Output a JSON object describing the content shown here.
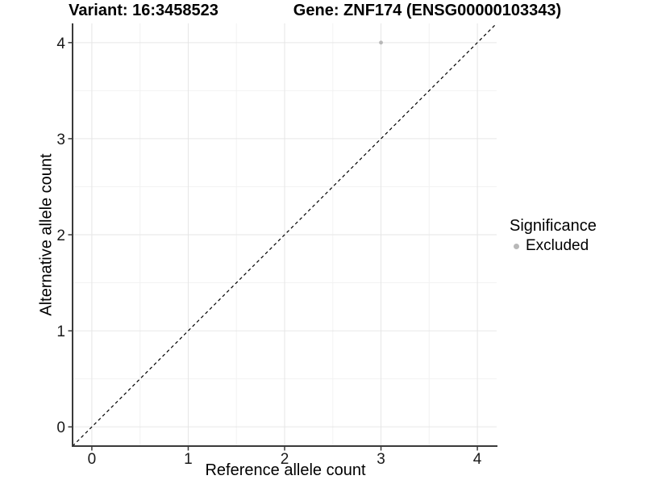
{
  "header": {
    "variant_title": "Variant: 16:3458523",
    "gene_title": "Gene: ZNF174 (ENSG00000103343)"
  },
  "colors": {
    "background": "#ffffff",
    "grid_major": "#e6e6e6",
    "grid_minor": "#f2f2f2",
    "axis_line": "#3a3a3a",
    "tick_text": "#1a1a1a",
    "point": "#b8b8b8",
    "identity_line": "#000000"
  },
  "chart_data": {
    "type": "scatter",
    "titles": [
      "Variant: 16:3458523",
      "Gene: ZNF174 (ENSG00000103343)"
    ],
    "xlabel": "Reference allele count",
    "ylabel": "Alternative allele count",
    "xlim": [
      -0.2,
      4.2
    ],
    "ylim": [
      -0.2,
      4.2
    ],
    "x_ticks": [
      0,
      1,
      2,
      3,
      4
    ],
    "y_ticks": [
      0,
      1,
      2,
      3,
      4
    ],
    "x_minor": [
      0.5,
      1.5,
      2.5,
      3.5
    ],
    "y_minor": [
      0.5,
      1.5,
      2.5,
      3.5
    ],
    "grid": "major+minor",
    "identity_line": {
      "style": "dashed",
      "slope": 1,
      "intercept": 0,
      "color": "#000000"
    },
    "legend": {
      "title": "Significance",
      "position": "right",
      "items": [
        {
          "label": "Excluded",
          "color": "#b8b8b8"
        }
      ]
    },
    "series": [
      {
        "name": "Excluded",
        "color": "#b8b8b8",
        "points": [
          [
            3,
            4
          ]
        ]
      }
    ]
  }
}
